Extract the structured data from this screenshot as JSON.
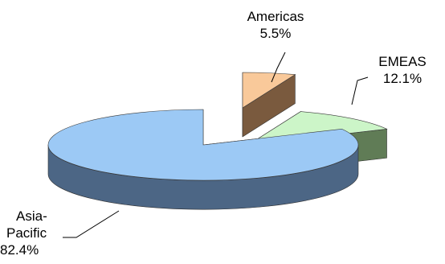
{
  "chart_data": {
    "type": "pie",
    "style": "3d-exploded",
    "slices": [
      {
        "name": "Americas",
        "value": 5.5,
        "label": "5.5%",
        "top_color": "#F9C99A",
        "side_color": "#7A5A3E"
      },
      {
        "name": "EMEAS",
        "value": 12.1,
        "label": "12.1%",
        "top_color": "#CCF5C8",
        "side_color": "#607C56"
      },
      {
        "name": "Asia-Pacific",
        "value": 82.4,
        "label": "82.4%",
        "top_color": "#9CC9F5",
        "side_color": "#4C6685"
      }
    ]
  },
  "labels": {
    "americas": {
      "name": "Americas",
      "pct": "5.5%"
    },
    "emeas": {
      "name": "EMEAS",
      "pct": "12.1%"
    },
    "asia": {
      "line1": "Asia-",
      "line2": "Pacific",
      "pct": "82.4%"
    }
  }
}
